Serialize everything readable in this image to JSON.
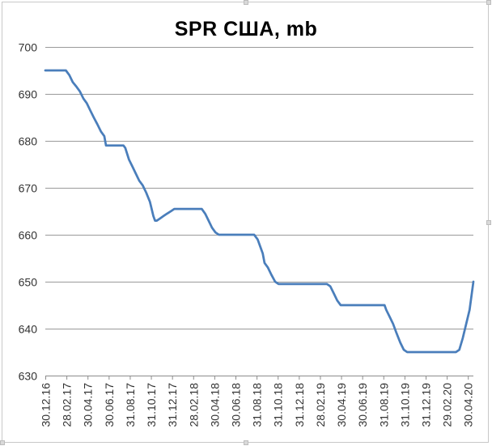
{
  "chart_data": {
    "type": "line",
    "title": "SPR США, mb",
    "xlabel": "",
    "ylabel": "",
    "ylim": [
      630,
      700
    ],
    "yticks": [
      700,
      690,
      680,
      670,
      660,
      650,
      640,
      630
    ],
    "grid": true,
    "legend": "none",
    "line_color": "#4a7ebb",
    "x_tick_labels": [
      "30.12.16",
      "28.02.17",
      "30.04.17",
      "30.06.17",
      "31.08.17",
      "31.10.17",
      "31.12.17",
      "28.02.18",
      "30.04.18",
      "30.06.18",
      "31.08.18",
      "31.10.18",
      "31.12.18",
      "28.02.19",
      "30.04.19",
      "30.06.19",
      "31.08.19",
      "31.10.19",
      "31.12.19",
      "29.02.20",
      "30.04.20"
    ],
    "series": [
      {
        "x": [
          "2016-12-30",
          "2017-01-31",
          "2017-02-15",
          "2017-02-28",
          "2017-03-10",
          "2017-03-20",
          "2017-03-31",
          "2017-04-10",
          "2017-04-20",
          "2017-04-30",
          "2017-05-10",
          "2017-05-20",
          "2017-05-31",
          "2017-06-10",
          "2017-06-20",
          "2017-06-25",
          "2017-06-30",
          "2017-07-31",
          "2017-08-15",
          "2017-08-20",
          "2017-08-31",
          "2017-09-10",
          "2017-09-20",
          "2017-09-30",
          "2017-10-10",
          "2017-10-20",
          "2017-10-31",
          "2017-11-10",
          "2017-11-15",
          "2017-11-20",
          "2017-11-30",
          "2017-12-10",
          "2017-12-20",
          "2017-12-31",
          "2018-01-10",
          "2018-01-20",
          "2018-01-31",
          "2018-02-10",
          "2018-02-20",
          "2018-02-28",
          "2018-03-31",
          "2018-04-10",
          "2018-04-20",
          "2018-04-30",
          "2018-05-05",
          "2018-05-10",
          "2018-05-20",
          "2018-05-31",
          "2018-06-30",
          "2018-07-31",
          "2018-08-31",
          "2018-09-10",
          "2018-09-20",
          "2018-09-25",
          "2018-09-30",
          "2018-10-10",
          "2018-10-20",
          "2018-10-31",
          "2018-11-10",
          "2018-11-20",
          "2018-12-31",
          "2019-01-31",
          "2019-02-28",
          "2019-03-31",
          "2019-04-10",
          "2019-04-20",
          "2019-04-30",
          "2019-05-10",
          "2019-05-31",
          "2019-06-30",
          "2019-07-31",
          "2019-08-31",
          "2019-09-15",
          "2019-09-20",
          "2019-09-30",
          "2019-10-10",
          "2019-10-20",
          "2019-10-31",
          "2019-11-10",
          "2019-11-20",
          "2019-11-30",
          "2019-12-31",
          "2020-01-31",
          "2020-02-29",
          "2020-03-31",
          "2020-04-10",
          "2020-04-20",
          "2020-04-30",
          "2020-05-10",
          "2020-05-20",
          "2020-05-31"
        ],
        "values": [
          695,
          695,
          695,
          695,
          694,
          692.5,
          691.5,
          690.5,
          689,
          688,
          686.5,
          685,
          683.5,
          682,
          681,
          679,
          679,
          679,
          679,
          678.5,
          676,
          674.5,
          673,
          671.5,
          670.5,
          669,
          667,
          664,
          663,
          663,
          663.5,
          664,
          664.5,
          665,
          665.5,
          665.5,
          665.5,
          665.5,
          665.5,
          665.5,
          665.5,
          664.5,
          663,
          661.5,
          661,
          660.5,
          660,
          660,
          660,
          660,
          660,
          659,
          657,
          656,
          654,
          653,
          651.5,
          650,
          649.5,
          649.5,
          649.5,
          649.5,
          649.5,
          649.5,
          649,
          647.5,
          646,
          645,
          645,
          645,
          645,
          645,
          645,
          644,
          642.5,
          641,
          639,
          637,
          635.5,
          635,
          635,
          635,
          635,
          635,
          635,
          635,
          635.5,
          638,
          641,
          644,
          650
        ]
      }
    ]
  }
}
